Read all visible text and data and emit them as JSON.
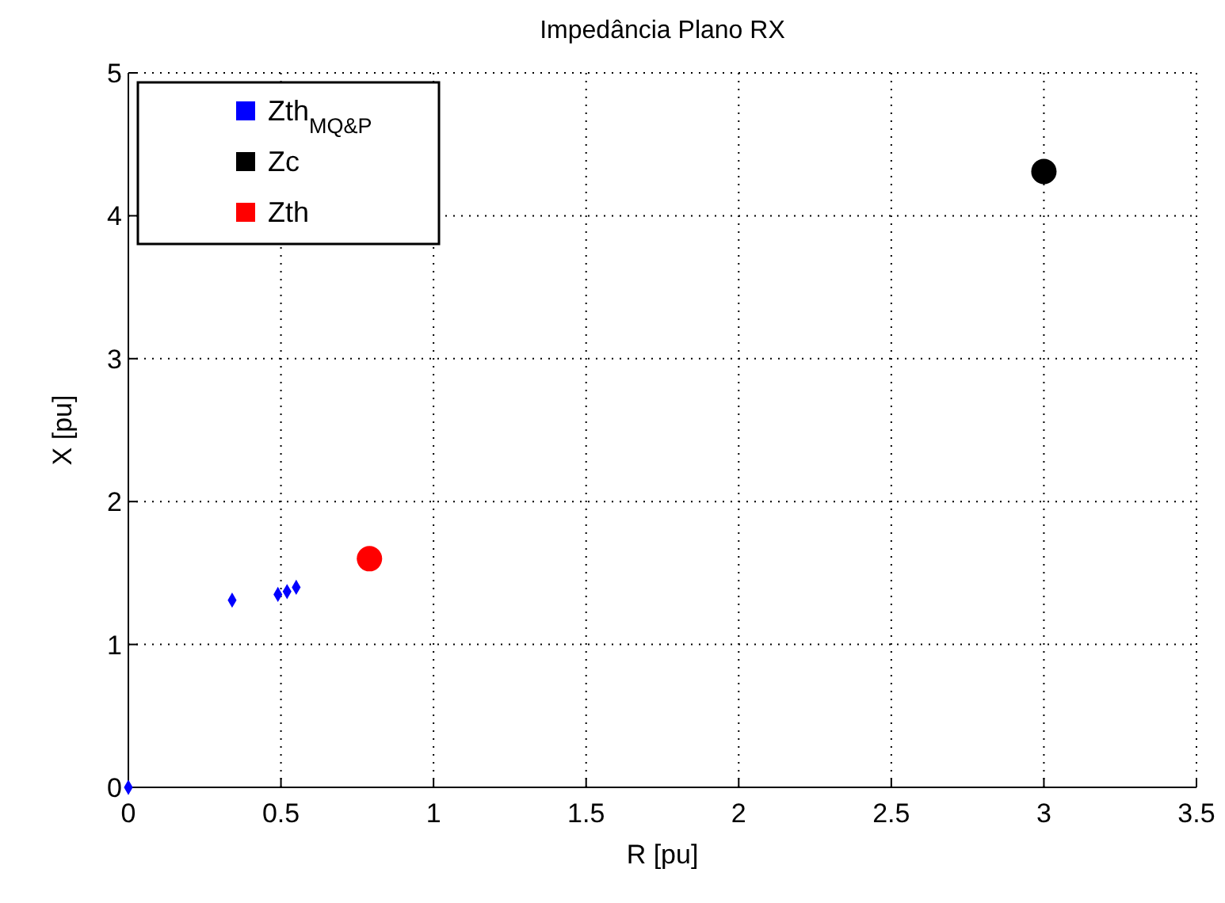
{
  "chart_data": {
    "type": "scatter",
    "title": "Impedância Plano RX",
    "xlabel": "R [pu]",
    "ylabel": "X [pu]",
    "xlim": [
      0,
      3.5
    ],
    "xticks": [
      0,
      0.5,
      1,
      1.5,
      2,
      2.5,
      3,
      3.5
    ],
    "ylim": [
      0,
      5
    ],
    "yticks": [
      0,
      1,
      2,
      3,
      4,
      5
    ],
    "grid": true,
    "legend": "top left",
    "series": [
      {
        "name": "Zth$_{MQ&P}$",
        "color": "#0000ff",
        "marker": "diamond",
        "x": [
          0,
          0.34,
          0.49,
          0.52,
          0.55
        ],
        "values": [
          0,
          1.31,
          1.35,
          1.37,
          1.4
        ]
      },
      {
        "name": "Zc",
        "color": "#000000",
        "marker": "circle",
        "x": [
          3
        ],
        "values": [
          4.31
        ]
      },
      {
        "name": "Zth",
        "color": "#ff0000",
        "marker": "circle",
        "x": [
          0.79
        ],
        "values": [
          1.6
        ]
      }
    ]
  }
}
